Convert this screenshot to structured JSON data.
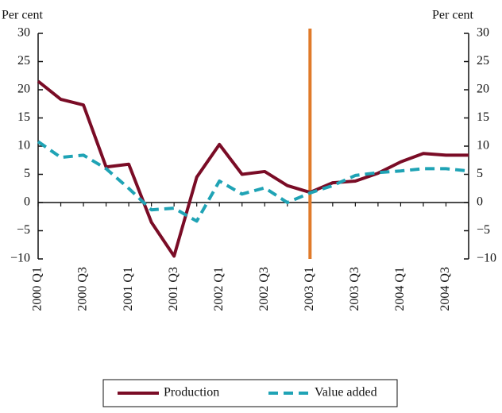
{
  "chart_data": {
    "type": "line",
    "ylabel": "Per cent",
    "y2label": "Per cent",
    "categories": [
      "2000 Q1",
      null,
      "2000 Q3",
      null,
      "2001 Q1",
      null,
      "2001 Q3",
      null,
      "2002 Q1",
      null,
      "2002 Q3",
      null,
      "2003 Q1",
      null,
      "2003 Q3",
      null,
      "2004 Q1",
      null,
      "2004 Q3",
      null
    ],
    "series": [
      {
        "name": "Production",
        "color": "#7a0c26",
        "dash": false,
        "values": [
          21.5,
          18.3,
          17.3,
          6.3,
          6.8,
          -3.5,
          -9.5,
          4.5,
          10.3,
          5,
          5.5,
          3,
          1.8,
          3.5,
          3.8,
          5.2,
          7.2,
          8.7,
          8.4,
          8.4
        ]
      },
      {
        "name": "Value added",
        "color": "#1fa3b5",
        "dash": true,
        "values": [
          10.8,
          8,
          8.4,
          6,
          2.5,
          -1.3,
          -1,
          -3.3,
          3.8,
          1.5,
          2.6,
          0,
          1.7,
          3,
          4.8,
          5.3,
          5.6,
          6,
          6,
          5.6
        ]
      }
    ],
    "ylim": [
      -10,
      30
    ],
    "yticks": [
      {
        "value": -10,
        "label": "−10"
      },
      {
        "value": -5,
        "label": "−5"
      },
      0,
      5,
      10,
      15,
      20,
      25,
      30
    ],
    "y2lim": [
      -10,
      30
    ],
    "y2ticks": [
      {
        "value": -10,
        "label": "−10"
      },
      {
        "value": -5,
        "label": "−5"
      },
      0,
      5,
      10,
      15,
      20,
      25,
      30
    ],
    "vline": {
      "at": "2003 Q1",
      "color": "#e07a2a"
    },
    "legend": "bottom"
  }
}
